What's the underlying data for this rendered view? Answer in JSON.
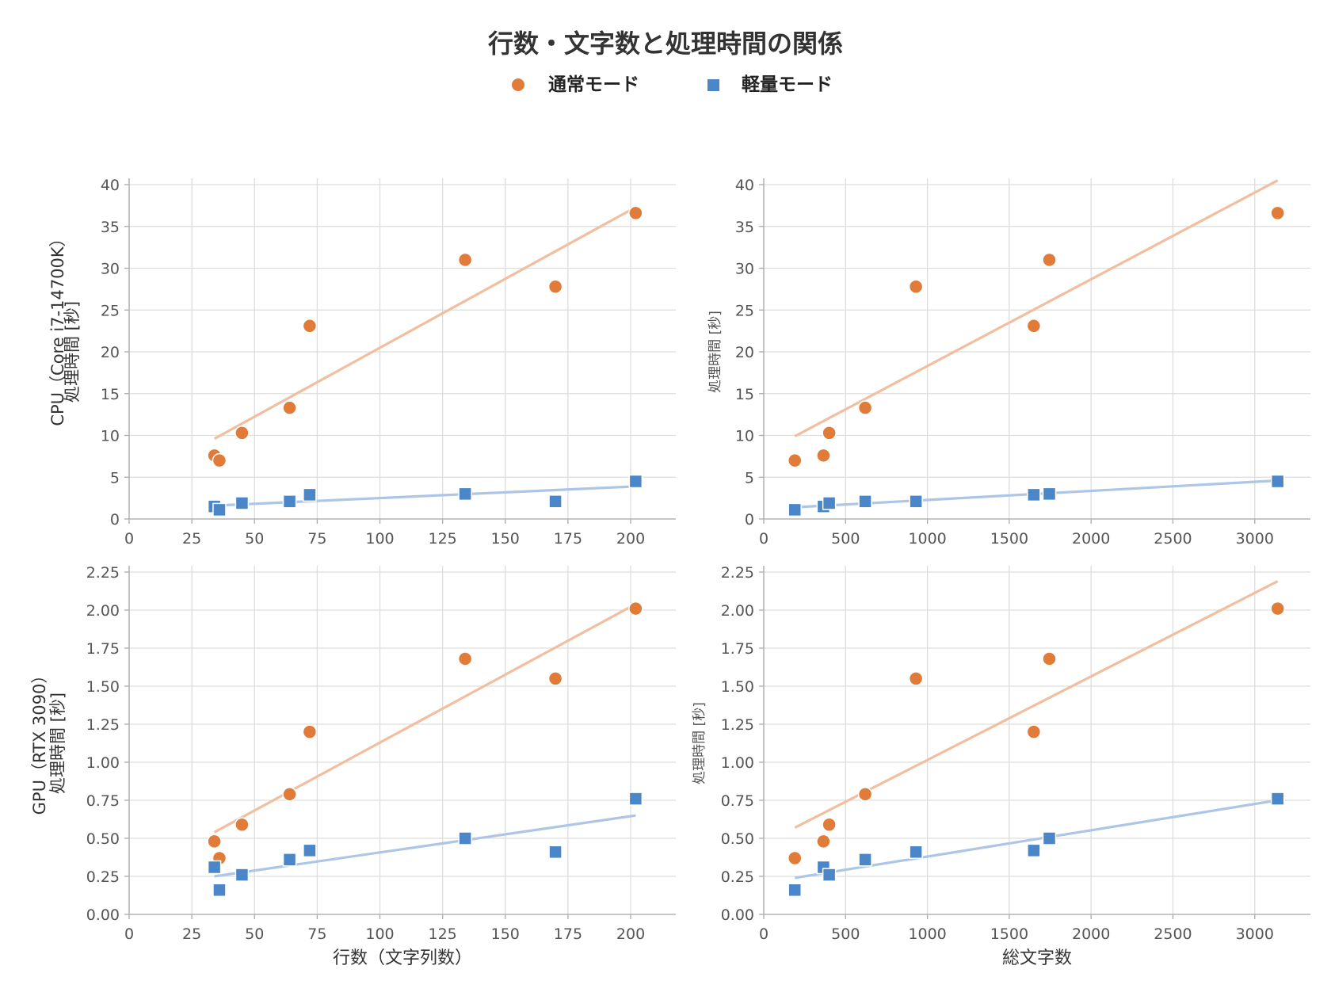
{
  "figure_title": "行数・文字数と処理時間の関係",
  "legend": [
    {
      "label": "通常モード",
      "marker": "circle",
      "color": "#E07B39"
    },
    {
      "label": "軽量モード",
      "marker": "square",
      "color": "#4A86C8"
    }
  ],
  "colors": {
    "normal": "#E07B39",
    "light": "#4A86C8",
    "normal_fit": "#F0BFA0",
    "light_fit": "#ADC6E5",
    "grid": "#DDDDDD"
  },
  "row_labels": [
    "CPU（Core i7-14700K）",
    "GPU（RTX 3090）"
  ],
  "ylabel": "処理時間 [秒]",
  "xlabels": [
    "行数（文字列数）",
    "総文字数"
  ],
  "chart_data": [
    {
      "type": "scatter",
      "row_label": "CPU（Core i7-14700K）",
      "ylabel": "処理時間 [秒]",
      "xlabel": "",
      "xlim": [
        0,
        218
      ],
      "ylim": [
        0,
        40
      ],
      "xticks": [
        0,
        25,
        50,
        75,
        100,
        125,
        150,
        175,
        200
      ],
      "yticks": [
        0,
        5,
        10,
        15,
        20,
        25,
        30,
        35,
        40
      ],
      "grid": true,
      "series": [
        {
          "name": "通常モード",
          "marker": "circle",
          "x": [
            34,
            36,
            45,
            64,
            72,
            134,
            170,
            202
          ],
          "y": [
            7.6,
            7.0,
            10.3,
            13.3,
            23.1,
            31.0,
            27.8,
            36.6
          ],
          "fit": [
            [
              34,
              9.6
            ],
            [
              202,
              37.3
            ]
          ]
        },
        {
          "name": "軽量モード",
          "marker": "square",
          "x": [
            34,
            36,
            45,
            64,
            72,
            134,
            170,
            202
          ],
          "y": [
            1.5,
            1.1,
            1.9,
            2.1,
            2.9,
            3.0,
            2.1,
            4.5
          ],
          "fit": [
            [
              34,
              1.6
            ],
            [
              202,
              3.9
            ]
          ]
        }
      ]
    },
    {
      "type": "scatter",
      "row_label": "",
      "ylabel": "処理時間 [秒]",
      "xlabel": "",
      "xlim": [
        0,
        3340
      ],
      "ylim": [
        0,
        40
      ],
      "xticks": [
        0,
        500,
        1000,
        1500,
        2000,
        2500,
        3000
      ],
      "yticks": [
        0,
        5,
        10,
        15,
        20,
        25,
        30,
        35,
        40
      ],
      "grid": true,
      "series": [
        {
          "name": "通常モード",
          "marker": "circle",
          "x": [
            190,
            365,
            400,
            620,
            930,
            1650,
            1745,
            3140
          ],
          "y": [
            7.0,
            7.6,
            10.3,
            13.3,
            27.8,
            23.1,
            31.0,
            36.6
          ],
          "fit": [
            [
              190,
              9.9
            ],
            [
              3140,
              40.5
            ]
          ]
        },
        {
          "name": "軽量モード",
          "marker": "square",
          "x": [
            190,
            365,
            400,
            620,
            930,
            1650,
            1745,
            3140
          ],
          "y": [
            1.1,
            1.5,
            1.9,
            2.1,
            2.1,
            2.9,
            3.0,
            4.5
          ],
          "fit": [
            [
              190,
              1.4
            ],
            [
              3140,
              4.6
            ]
          ]
        }
      ]
    },
    {
      "type": "scatter",
      "row_label": "GPU（RTX 3090）",
      "ylabel": "処理時間 [秒]",
      "xlabel": "行数（文字列数）",
      "xlim": [
        0,
        218
      ],
      "ylim": [
        0,
        2.25
      ],
      "xticks": [
        0,
        25,
        50,
        75,
        100,
        125,
        150,
        175,
        200
      ],
      "yticks": [
        0,
        0.25,
        0.5,
        0.75,
        1.0,
        1.25,
        1.5,
        1.75,
        2.0,
        2.25
      ],
      "grid": true,
      "series": [
        {
          "name": "通常モード",
          "marker": "circle",
          "x": [
            34,
            36,
            45,
            64,
            72,
            134,
            170,
            202
          ],
          "y": [
            0.48,
            0.37,
            0.59,
            0.79,
            1.2,
            1.68,
            1.55,
            2.01
          ],
          "fit": [
            [
              34,
              0.54
            ],
            [
              202,
              2.04
            ]
          ]
        },
        {
          "name": "軽量モード",
          "marker": "square",
          "x": [
            34,
            36,
            45,
            64,
            72,
            134,
            170,
            202
          ],
          "y": [
            0.31,
            0.16,
            0.26,
            0.36,
            0.42,
            0.5,
            0.41,
            0.76
          ],
          "fit": [
            [
              34,
              0.25
            ],
            [
              202,
              0.65
            ]
          ]
        }
      ]
    },
    {
      "type": "scatter",
      "row_label": "",
      "ylabel": "処理時間 [秒]",
      "xlabel": "総文字数",
      "xlim": [
        0,
        3340
      ],
      "ylim": [
        0,
        2.25
      ],
      "xticks": [
        0,
        500,
        1000,
        1500,
        2000,
        2500,
        3000
      ],
      "yticks": [
        0,
        0.25,
        0.5,
        0.75,
        1.0,
        1.25,
        1.5,
        1.75,
        2.0,
        2.25
      ],
      "grid": true,
      "series": [
        {
          "name": "通常モード",
          "marker": "circle",
          "x": [
            190,
            365,
            400,
            620,
            930,
            1650,
            1745,
            3140
          ],
          "y": [
            0.37,
            0.48,
            0.59,
            0.79,
            1.55,
            1.2,
            1.68,
            2.01
          ],
          "fit": [
            [
              190,
              0.57
            ],
            [
              3140,
              2.19
            ]
          ]
        },
        {
          "name": "軽量モード",
          "marker": "square",
          "x": [
            190,
            365,
            400,
            620,
            930,
            1650,
            1745,
            3140
          ],
          "y": [
            0.16,
            0.31,
            0.26,
            0.36,
            0.41,
            0.42,
            0.5,
            0.76
          ],
          "fit": [
            [
              190,
              0.24
            ],
            [
              3140,
              0.75
            ]
          ]
        }
      ]
    }
  ]
}
